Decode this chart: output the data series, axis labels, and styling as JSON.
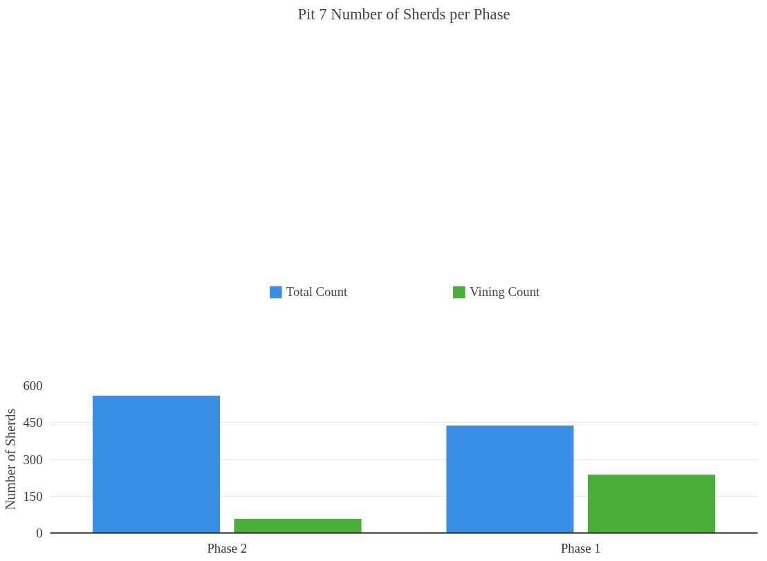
{
  "chart_data": {
    "type": "bar",
    "title": "Pit 7 Number of Sherds per Phase",
    "ylabel": "Number of Sherds",
    "categories": [
      "Phase 2",
      "Phase 1"
    ],
    "series": [
      {
        "name": "Total Count",
        "color": "#3a8ee6",
        "values": [
          559,
          437
        ]
      },
      {
        "name": "Vining Count",
        "color": "#4cae3a",
        "values": [
          58,
          237
        ]
      }
    ],
    "ylim": [
      0,
      600
    ],
    "yticks": [
      0,
      150,
      300,
      450,
      600
    ],
    "grid": "y",
    "legend": "top"
  }
}
